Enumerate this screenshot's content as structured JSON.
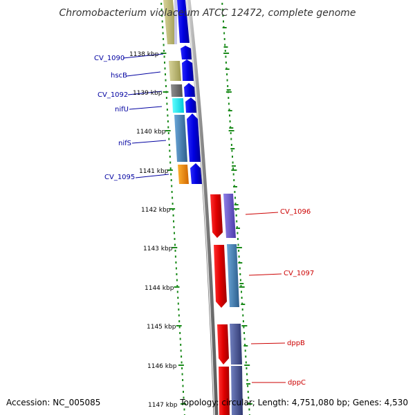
{
  "title": "Chromobacterium violaceum ATCC 12472, complete genome",
  "accession": "Accession: NC_005085",
  "topology": "Topology: circular; Length: 4,751,080 bp; Genes: 4,530",
  "ticks": [
    {
      "label": "1138 kbp"
    },
    {
      "label": "1139 kbp"
    },
    {
      "label": "1140 kbp"
    },
    {
      "label": "1141 kbp"
    },
    {
      "label": "1142 kbp"
    },
    {
      "label": "1143 kbp"
    },
    {
      "label": "1144 kbp"
    },
    {
      "label": "1145 kbp"
    },
    {
      "label": "1146 kbp"
    },
    {
      "label": "1147 kbp"
    }
  ],
  "genes_left": [
    {
      "name": "CV_1090"
    },
    {
      "name": "hscB"
    },
    {
      "name": "CV_1092"
    },
    {
      "name": "nifU"
    },
    {
      "name": "nifS"
    },
    {
      "name": "CV_1095"
    }
  ],
  "genes_right": [
    {
      "name": "CV_1096"
    },
    {
      "name": "CV_1097"
    },
    {
      "name": "dppB"
    },
    {
      "name": "dppC"
    }
  ],
  "colors": {
    "forward_strand": "#0000ee",
    "reverse_strand": "#ee0000",
    "left_label": "#0000a0",
    "right_label": "#cc0000",
    "dots": "#1a8a1a",
    "backbone": "#888888"
  }
}
